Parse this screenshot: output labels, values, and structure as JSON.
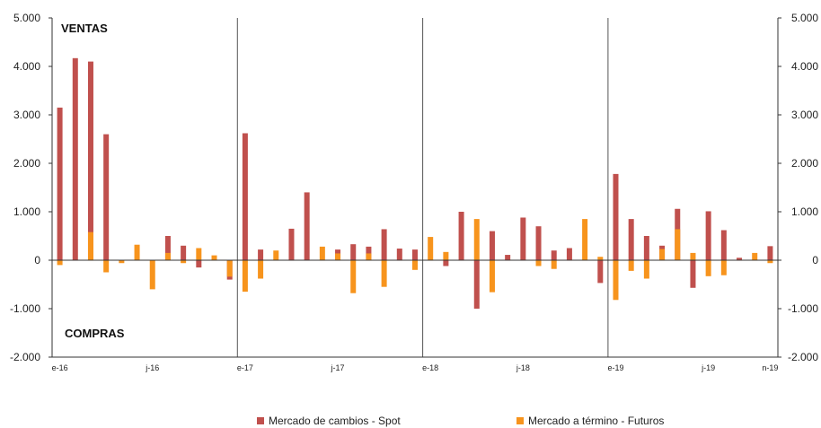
{
  "chart_data": {
    "type": "bar",
    "annotations": [
      "VENTAS",
      "COMPRAS"
    ],
    "ylim": [
      -2000,
      5000
    ],
    "yticks": [
      "5.000",
      "4.000",
      "3.000",
      "2.000",
      "1.000",
      "0",
      "-1.000",
      "-2.000"
    ],
    "ytick_values": [
      5000,
      4000,
      3000,
      2000,
      1000,
      0,
      -1000,
      -2000
    ],
    "y_axes": "left and right",
    "xtick_labels": [
      {
        "index": 0,
        "label": "e-16"
      },
      {
        "index": 6,
        "label": "j-16"
      },
      {
        "index": 12,
        "label": "e-17"
      },
      {
        "index": 18,
        "label": "j-17"
      },
      {
        "index": 24,
        "label": "e-18"
      },
      {
        "index": 30,
        "label": "j-18"
      },
      {
        "index": 36,
        "label": "e-19"
      },
      {
        "index": 42,
        "label": "j-19"
      },
      {
        "index": 46,
        "label": "n-19"
      }
    ],
    "year_separators_before_index": [
      12,
      24,
      36
    ],
    "series": [
      {
        "name": "Mercado de cambios - Spot",
        "color": "#c0504d",
        "values": [
          3150,
          4170,
          4100,
          2600,
          0,
          0,
          0,
          500,
          300,
          -150,
          0,
          -400,
          2620,
          220,
          0,
          650,
          1400,
          0,
          220,
          330,
          280,
          640,
          240,
          220,
          0,
          -120,
          1000,
          -1000,
          600,
          110,
          880,
          700,
          200,
          250,
          0,
          -470,
          1780,
          850,
          500,
          300,
          1060,
          -570,
          1010,
          620,
          50,
          0,
          290
        ]
      },
      {
        "name": "Mercado a término - Futuros",
        "color": "#f7941d",
        "values": [
          -100,
          0,
          580,
          -250,
          -60,
          320,
          -600,
          150,
          -60,
          250,
          100,
          -340,
          -650,
          -380,
          200,
          0,
          0,
          280,
          140,
          -680,
          140,
          -550,
          0,
          -200,
          480,
          170,
          0,
          850,
          -660,
          0,
          0,
          -120,
          -180,
          0,
          850,
          70,
          -820,
          -220,
          -380,
          230,
          640,
          150,
          -330,
          -310,
          0,
          150,
          -60
        ]
      }
    ]
  }
}
